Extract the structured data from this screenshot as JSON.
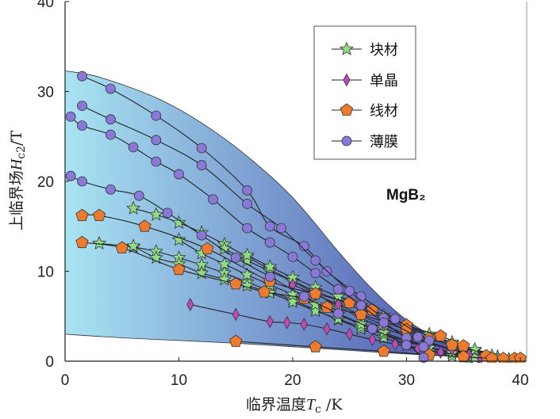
{
  "chart_data": {
    "type": "scatter",
    "title": "",
    "annotation": "MgB₂",
    "xlabel": {
      "prefix": "临界温度",
      "symbol": "T",
      "sub": "c",
      "unit": " /K"
    },
    "ylabel": {
      "prefix": "上临界场",
      "symbol": "H",
      "sub": "c2",
      "unit": "/T"
    },
    "xlim": [
      0,
      40
    ],
    "ylim": [
      0,
      40
    ],
    "xticks": [
      "0",
      "10",
      "20",
      "30",
      "40"
    ],
    "yticks": [
      "0",
      "10",
      "20",
      "30",
      "40"
    ],
    "grid": false,
    "legend_position": "top-right",
    "colors": {
      "band_light": "#a9e4f3",
      "band_dark": "#3e3fa2",
      "bulk": "#8fdc86",
      "single_crystal": "#c04ab8",
      "wire": "#ee7a2e",
      "film": "#8a78d8",
      "line": "#222222"
    },
    "band": {
      "upper": [
        [
          0,
          32.3
        ],
        [
          3,
          31.6
        ],
        [
          8,
          29.3
        ],
        [
          12,
          26.5
        ],
        [
          16,
          22.8
        ],
        [
          20,
          18.2
        ],
        [
          24,
          12.2
        ],
        [
          27,
          8
        ],
        [
          30,
          4.6
        ],
        [
          33,
          2.4
        ],
        [
          36,
          1.3
        ],
        [
          38,
          0.8
        ],
        [
          40,
          0.2
        ]
      ],
      "lower": [
        [
          0,
          3
        ],
        [
          5,
          2.6
        ],
        [
          10,
          2.3
        ],
        [
          15,
          2
        ],
        [
          20,
          1.6
        ],
        [
          25,
          1.2
        ],
        [
          30,
          0.8
        ],
        [
          35,
          0.5
        ],
        [
          40,
          0.1
        ]
      ]
    },
    "series": [
      {
        "name": "块材",
        "marker": "star",
        "color": "#8fdc86",
        "curves": [
          [
            [
              6,
              17
            ],
            [
              8,
              16.3
            ],
            [
              10,
              15.4
            ],
            [
              12,
              14.3
            ],
            [
              14,
              13
            ],
            [
              16,
              11.6
            ],
            [
              18,
              10.2
            ],
            [
              20,
              8.9
            ],
            [
              22,
              7.5
            ],
            [
              24,
              6.1
            ],
            [
              26,
              4.8
            ],
            [
              28,
              3.7
            ],
            [
              30,
              2.8
            ],
            [
              32,
              2
            ],
            [
              34,
              1.3
            ],
            [
              36,
              0.8
            ],
            [
              37.5,
              0.3
            ]
          ],
          [
            [
              3,
              13.1
            ],
            [
              6,
              12.7
            ],
            [
              8,
              12.2
            ],
            [
              10,
              11.5
            ],
            [
              12,
              10.7
            ],
            [
              14,
              9.8
            ],
            [
              16,
              8.8
            ],
            [
              18,
              7.8
            ],
            [
              20,
              6.8
            ],
            [
              22,
              5.7
            ],
            [
              24,
              4.6
            ],
            [
              26,
              3.6
            ],
            [
              28,
              2.6
            ],
            [
              30,
              1.8
            ],
            [
              32,
              1.1
            ],
            [
              34,
              0.6
            ],
            [
              35.5,
              0.2
            ]
          ],
          [
            [
              6,
              12.8
            ],
            [
              8,
              11.5
            ],
            [
              10,
              10.8
            ],
            [
              12,
              9.8
            ],
            [
              14,
              9.1
            ],
            [
              16,
              8.4
            ],
            [
              18,
              7.6
            ],
            [
              20,
              6.6
            ],
            [
              22,
              5.6
            ],
            [
              24,
              4.7
            ],
            [
              26,
              3.8
            ],
            [
              28,
              3
            ],
            [
              30,
              2.2
            ],
            [
              32,
              1.5
            ],
            [
              34,
              1
            ],
            [
              36,
              0.5
            ]
          ],
          [
            [
              10,
              13.5
            ],
            [
              12,
              12
            ],
            [
              14,
              10.8
            ],
            [
              16,
              9.6
            ],
            [
              18,
              8.5
            ],
            [
              20,
              7.4
            ],
            [
              22,
              6.3
            ],
            [
              24,
              5.2
            ],
            [
              26,
              4.1
            ],
            [
              28,
              3.2
            ],
            [
              30,
              2.3
            ],
            [
              32,
              1.5
            ],
            [
              34,
              0.9
            ],
            [
              36,
              0.4
            ]
          ],
          [
            [
              14,
              12.5
            ],
            [
              16,
              11.2
            ],
            [
              18,
              10
            ],
            [
              20,
              8.9
            ],
            [
              22,
              7.8
            ],
            [
              24,
              6.8
            ],
            [
              26,
              5.8
            ],
            [
              28,
              4.8
            ],
            [
              30,
              3.8
            ],
            [
              32,
              2.9
            ],
            [
              34,
              2
            ],
            [
              36,
              1.2
            ],
            [
              38,
              0.5
            ],
            [
              39,
              0.2
            ]
          ],
          [
            [
              16,
              11.8
            ],
            [
              18,
              10.5
            ],
            [
              20,
              9.3
            ],
            [
              22,
              8.2
            ],
            [
              24,
              7.2
            ],
            [
              26,
              6.2
            ],
            [
              28,
              5.1
            ],
            [
              30,
              4
            ],
            [
              32,
              3
            ],
            [
              34,
              2.1
            ],
            [
              36,
              1.3
            ],
            [
              37.5,
              0.6
            ]
          ]
        ]
      },
      {
        "name": "单晶",
        "marker": "diamond",
        "color": "#c04ab8",
        "curves": [
          [
            [
              11,
              6.3
            ],
            [
              15,
              5.2
            ],
            [
              18,
              4.4
            ],
            [
              19.5,
              4.3
            ],
            [
              21,
              4.1
            ],
            [
              23,
              3.6
            ],
            [
              25,
              3
            ],
            [
              27,
              2.4
            ],
            [
              29,
              1.9
            ],
            [
              31,
              1.4
            ],
            [
              33,
              1
            ],
            [
              35,
              0.6
            ],
            [
              36.5,
              0.3
            ]
          ],
          [
            [
              20,
              8.5
            ],
            [
              22,
              7.4
            ],
            [
              24,
              6.3
            ],
            [
              26,
              5.1
            ],
            [
              28,
              4
            ],
            [
              30,
              3
            ],
            [
              32,
              2.1
            ],
            [
              34,
              1.3
            ],
            [
              35.5,
              0.7
            ]
          ]
        ]
      },
      {
        "name": "线材",
        "marker": "pentagon",
        "color": "#ee7a2e",
        "curves": [
          [
            [
              1.5,
              16.2
            ],
            [
              3,
              16.2
            ],
            [
              7,
              15
            ],
            [
              12.5,
              12.5
            ],
            [
              18,
              8.9
            ],
            [
              22,
              7.5
            ],
            [
              25,
              6.5
            ],
            [
              27,
              5.7
            ],
            [
              30,
              4
            ],
            [
              33,
              2.8
            ],
            [
              35,
              1.7
            ],
            [
              37,
              0.6
            ]
          ],
          [
            [
              1.5,
              13.2
            ],
            [
              5,
              12.6
            ],
            [
              10,
              10.2
            ],
            [
              15,
              8.6
            ],
            [
              17.5,
              7.7
            ],
            [
              21,
              7
            ],
            [
              23,
              6
            ],
            [
              26,
              5.2
            ],
            [
              30,
              3.5
            ],
            [
              32,
              2.5
            ],
            [
              34,
              1.8
            ]
          ],
          [
            [
              15,
              2.2
            ],
            [
              22,
              1.6
            ],
            [
              28,
              1.1
            ],
            [
              32,
              0.7
            ],
            [
              35,
              0.5
            ],
            [
              37.5,
              0.3
            ],
            [
              38.5,
              0.3
            ],
            [
              39.5,
              0.3
            ],
            [
              40,
              0.3
            ]
          ]
        ]
      },
      {
        "name": "薄膜",
        "marker": "circle",
        "color": "#8a78d8",
        "curves": [
          [
            [
              1.5,
              31.7
            ],
            [
              4,
              30.3
            ],
            [
              8,
              27.3
            ],
            [
              12,
              23.7
            ],
            [
              16,
              19
            ],
            [
              18,
              15
            ],
            [
              21,
              12.8
            ],
            [
              23,
              10
            ],
            [
              26,
              7.2
            ],
            [
              29,
              4.7
            ],
            [
              32,
              2.3
            ]
          ],
          [
            [
              1.5,
              28.4
            ],
            [
              4,
              26.9
            ],
            [
              8,
              24.6
            ],
            [
              12,
              21.8
            ],
            [
              16,
              17.5
            ],
            [
              19,
              14.8
            ],
            [
              22,
              11.2
            ],
            [
              25,
              7.8
            ],
            [
              28,
              4.8
            ],
            [
              31,
              2.7
            ]
          ],
          [
            [
              0.5,
              27.2
            ],
            [
              1.5,
              26.2
            ],
            [
              4,
              25.2
            ],
            [
              6,
              23.8
            ],
            [
              8,
              22.2
            ],
            [
              10,
              20.8
            ],
            [
              13,
              18
            ],
            [
              16,
              14.8
            ],
            [
              18,
              13.2
            ],
            [
              20,
              11.6
            ],
            [
              22,
              9.8
            ],
            [
              24,
              8
            ],
            [
              26,
              6.2
            ],
            [
              28,
              4.3
            ],
            [
              30,
              2.6
            ],
            [
              31.5,
              1.6
            ]
          ],
          [
            [
              0.5,
              20.6
            ],
            [
              1.5,
              20
            ],
            [
              4,
              19.1
            ],
            [
              6.5,
              18.4
            ],
            [
              9,
              16.5
            ],
            [
              12,
              14
            ],
            [
              15,
              11.5
            ],
            [
              18,
              9.4
            ],
            [
              21,
              7.2
            ],
            [
              24,
              5.3
            ],
            [
              27,
              3.6
            ],
            [
              30,
              1.8
            ],
            [
              31.5,
              0.4
            ]
          ]
        ]
      }
    ]
  }
}
